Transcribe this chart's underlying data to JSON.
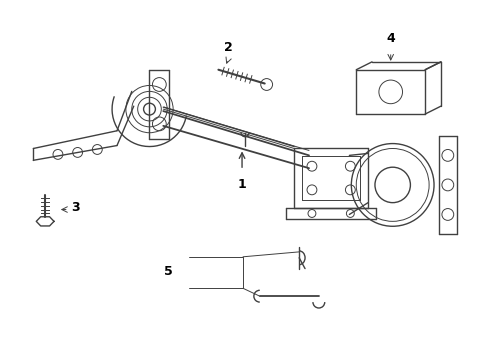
{
  "background_color": "#ffffff",
  "line_color": "#404040",
  "label_color": "#000000",
  "fig_width": 4.9,
  "fig_height": 3.6,
  "dpi": 100
}
